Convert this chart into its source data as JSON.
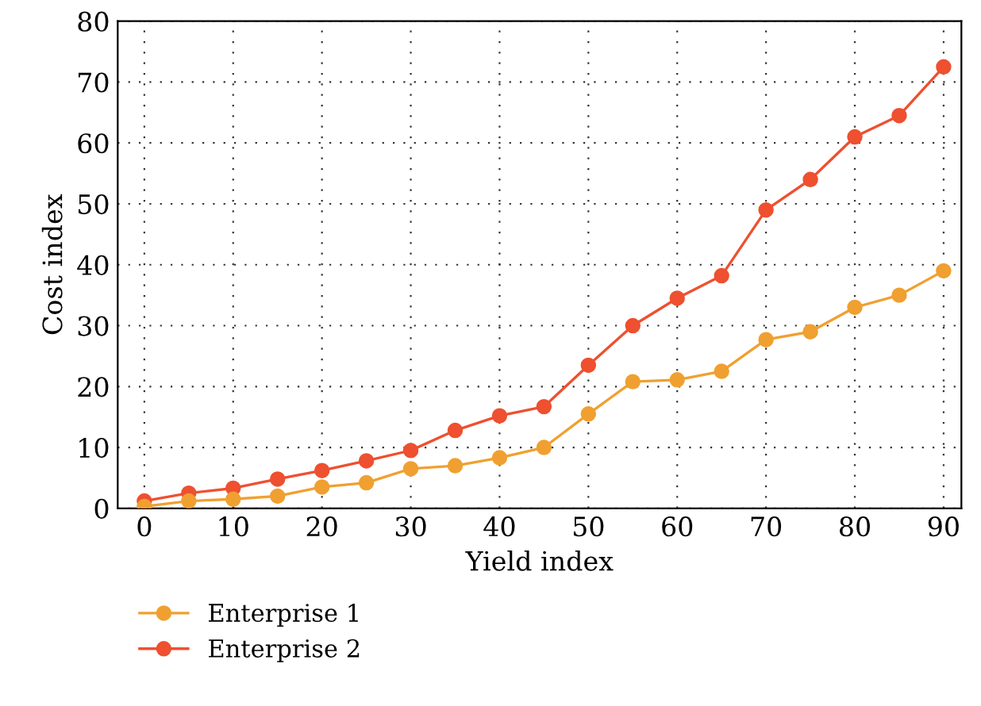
{
  "chart_data": {
    "type": "line",
    "xlabel": "Yield index",
    "ylabel": "Cost index",
    "x": [
      0,
      5,
      10,
      15,
      20,
      25,
      30,
      35,
      40,
      45,
      50,
      55,
      60,
      65,
      70,
      75,
      80,
      85,
      90
    ],
    "series": [
      {
        "name": "Enterprise 1",
        "color": "#f0a030",
        "values": [
          0.3,
          1.2,
          1.5,
          2,
          3.5,
          4.2,
          6.5,
          7,
          8.3,
          10,
          15.5,
          20.8,
          21.1,
          22.5,
          27.7,
          29,
          33,
          35,
          39
        ]
      },
      {
        "name": "Enterprise 2",
        "color": "#ee5030",
        "values": [
          1.2,
          2.5,
          3.3,
          4.8,
          6.2,
          7.8,
          9.5,
          12.8,
          15.2,
          16.7,
          23.5,
          30,
          34.5,
          38.2,
          49,
          54,
          61,
          64.5,
          72.5
        ]
      }
    ],
    "xlim": [
      -3,
      92
    ],
    "ylim": [
      0,
      80
    ],
    "xticks": [
      0,
      10,
      20,
      30,
      40,
      50,
      60,
      70,
      80,
      90
    ],
    "yticks": [
      0,
      10,
      20,
      30,
      40,
      50,
      60,
      70,
      80
    ],
    "grid": true,
    "legend": "bottom left",
    "marker": "circle",
    "line_style": "solid"
  }
}
